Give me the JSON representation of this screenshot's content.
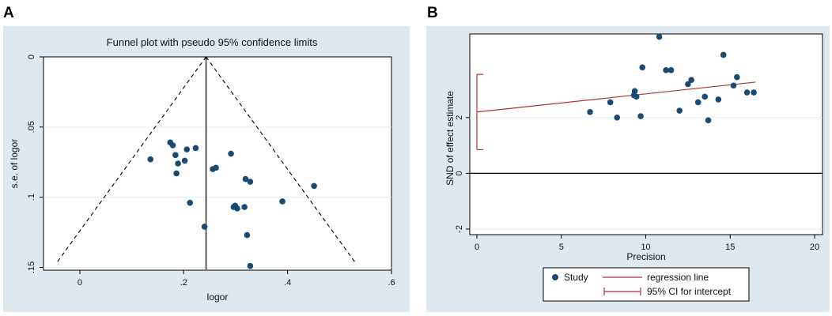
{
  "figure": {
    "panel_labels": [
      "A",
      "B"
    ]
  },
  "colors": {
    "panel_bg": "#dfe8ee",
    "plot_bg": "#ffffff",
    "point": "#1a4a72",
    "regression": "#b03030",
    "axis": "#000000",
    "grid": "#e6eef2"
  },
  "chart_data": [
    {
      "type": "scatter",
      "panel": "A",
      "title": "Funnel plot with pseudo 95% confidence limits",
      "xlabel": "logor",
      "ylabel": "s.e. of logor",
      "xlim": [
        -0.07,
        0.6
      ],
      "ylim": [
        0,
        0.152
      ],
      "y_reversed": true,
      "xticks": [
        0,
        0.2,
        0.4,
        0.6
      ],
      "xtick_labels": [
        "0",
        ".2",
        ".4",
        ".6"
      ],
      "yticks": [
        0,
        0.05,
        0.1,
        0.15
      ],
      "ytick_labels": [
        "0",
        ".05",
        ".1",
        ".15"
      ],
      "pooled_estimate": 0.243,
      "confidence_limit_z": 1.96,
      "points": [
        {
          "x": 0.136,
          "y": 0.073
        },
        {
          "x": 0.174,
          "y": 0.061
        },
        {
          "x": 0.179,
          "y": 0.063
        },
        {
          "x": 0.184,
          "y": 0.07
        },
        {
          "x": 0.189,
          "y": 0.076
        },
        {
          "x": 0.186,
          "y": 0.083
        },
        {
          "x": 0.202,
          "y": 0.074
        },
        {
          "x": 0.206,
          "y": 0.066
        },
        {
          "x": 0.223,
          "y": 0.065
        },
        {
          "x": 0.212,
          "y": 0.104
        },
        {
          "x": 0.24,
          "y": 0.121
        },
        {
          "x": 0.256,
          "y": 0.08
        },
        {
          "x": 0.262,
          "y": 0.079
        },
        {
          "x": 0.291,
          "y": 0.069
        },
        {
          "x": 0.296,
          "y": 0.107
        },
        {
          "x": 0.299,
          "y": 0.106
        },
        {
          "x": 0.303,
          "y": 0.108
        },
        {
          "x": 0.317,
          "y": 0.107
        },
        {
          "x": 0.319,
          "y": 0.087
        },
        {
          "x": 0.322,
          "y": 0.127
        },
        {
          "x": 0.328,
          "y": 0.089
        },
        {
          "x": 0.328,
          "y": 0.149
        },
        {
          "x": 0.39,
          "y": 0.103
        },
        {
          "x": 0.451,
          "y": 0.092
        }
      ]
    },
    {
      "type": "scatter",
      "panel": "B",
      "title": "",
      "xlabel": "Precision",
      "ylabel": "SND of effect estimate",
      "xlim": [
        0,
        20
      ],
      "ylim": [
        -2.2,
        5
      ],
      "xticks": [
        0,
        5,
        10,
        15,
        20
      ],
      "xtick_labels": [
        "0",
        "5",
        "10",
        "15",
        "20"
      ],
      "yticks": [
        -2,
        0,
        2
      ],
      "ytick_labels": [
        "-2",
        "0",
        "2"
      ],
      "regression": {
        "intercept": 2.2,
        "slope": 0.065,
        "x_end": 16.5
      },
      "ci_intercept": [
        0.85,
        3.55
      ],
      "legend": {
        "study": "Study",
        "regression_line": "regression line",
        "ci": "95% CI for intercept"
      },
      "points": [
        {
          "x": 6.7,
          "y": 2.2
        },
        {
          "x": 7.9,
          "y": 2.55
        },
        {
          "x": 8.3,
          "y": 2.0
        },
        {
          "x": 9.3,
          "y": 2.8
        },
        {
          "x": 9.35,
          "y": 2.95
        },
        {
          "x": 9.45,
          "y": 2.75
        },
        {
          "x": 9.7,
          "y": 2.05
        },
        {
          "x": 9.8,
          "y": 3.8
        },
        {
          "x": 10.8,
          "y": 4.9
        },
        {
          "x": 11.2,
          "y": 3.7
        },
        {
          "x": 11.5,
          "y": 3.7
        },
        {
          "x": 12.0,
          "y": 2.25
        },
        {
          "x": 12.5,
          "y": 3.2
        },
        {
          "x": 12.7,
          "y": 3.35
        },
        {
          "x": 13.1,
          "y": 2.55
        },
        {
          "x": 13.5,
          "y": 2.75
        },
        {
          "x": 13.7,
          "y": 1.9
        },
        {
          "x": 14.3,
          "y": 2.65
        },
        {
          "x": 14.6,
          "y": 4.25
        },
        {
          "x": 15.2,
          "y": 3.15
        },
        {
          "x": 15.4,
          "y": 3.45
        },
        {
          "x": 16.0,
          "y": 2.9
        },
        {
          "x": 16.4,
          "y": 2.9
        }
      ]
    }
  ]
}
